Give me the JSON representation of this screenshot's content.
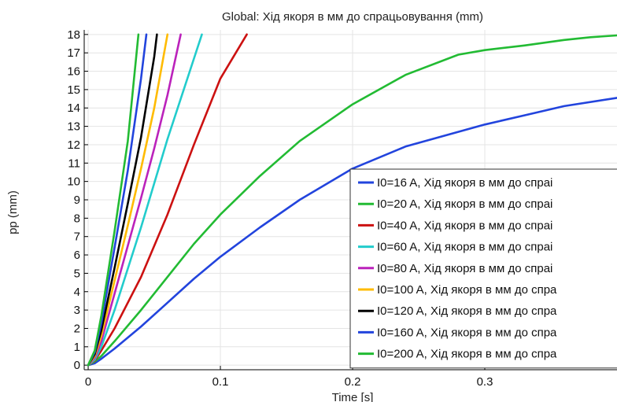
{
  "chart_data": {
    "type": "line",
    "title": "Global: Хід якоря в мм до спрацьовування (mm)",
    "xlabel": "Time [s]",
    "ylabel": "pp (mm)",
    "xlim": [
      -0.003,
      0.4
    ],
    "ylim": [
      -0.25,
      18.25
    ],
    "x_ticks": [
      0,
      0.1,
      0.2,
      0.3
    ],
    "x_tick_labels": [
      "0",
      "0.1",
      "0.2",
      "0.3"
    ],
    "y_ticks": [
      0,
      1,
      2,
      3,
      4,
      5,
      6,
      7,
      8,
      9,
      10,
      11,
      12,
      13,
      14,
      15,
      16,
      17,
      18
    ],
    "y_tick_labels": [
      "0",
      "1",
      "2",
      "3",
      "4",
      "5",
      "6",
      "7",
      "8",
      "9",
      "10",
      "11",
      "12",
      "13",
      "14",
      "15",
      "16",
      "17",
      "18"
    ],
    "grid": true,
    "legend_position": "lower-right",
    "series": [
      {
        "name": "I0=16 A, Хід якоря в мм до спраі",
        "color": "#2244dd",
        "x": [
          0,
          0.005,
          0.01,
          0.02,
          0.04,
          0.06,
          0.08,
          0.1,
          0.13,
          0.16,
          0.2,
          0.24,
          0.27,
          0.3,
          0.33,
          0.36,
          0.4
        ],
        "y": [
          0,
          0.1,
          0.35,
          0.9,
          2.1,
          3.4,
          4.7,
          5.9,
          7.5,
          9.0,
          10.7,
          11.9,
          12.5,
          13.1,
          13.6,
          14.1,
          14.55
        ]
      },
      {
        "name": "I0=20 A, Хід якоря в мм до спраі",
        "color": "#22bb33",
        "x": [
          0,
          0.005,
          0.01,
          0.02,
          0.04,
          0.06,
          0.08,
          0.1,
          0.13,
          0.16,
          0.2,
          0.24,
          0.28,
          0.3,
          0.33,
          0.36,
          0.38,
          0.4
        ],
        "y": [
          0,
          0.2,
          0.5,
          1.3,
          3.0,
          4.8,
          6.6,
          8.2,
          10.3,
          12.2,
          14.2,
          15.8,
          16.9,
          17.15,
          17.4,
          17.7,
          17.85,
          17.95
        ]
      },
      {
        "name": "I0=40 A, Хід якоря в мм до спраі",
        "color": "#cc1111",
        "x": [
          0,
          0.005,
          0.01,
          0.02,
          0.04,
          0.06,
          0.08,
          0.1,
          0.12
        ],
        "y": [
          0,
          0.25,
          0.8,
          2.0,
          4.8,
          8.2,
          12.0,
          15.6,
          18.0
        ]
      },
      {
        "name": "I0=60 A, Хід якоря в мм до спраі",
        "color": "#22cccc",
        "x": [
          0,
          0.005,
          0.01,
          0.02,
          0.04,
          0.06,
          0.086
        ],
        "y": [
          0,
          0.3,
          1.0,
          3.0,
          7.5,
          12.3,
          18.0
        ]
      },
      {
        "name": "I0=80 A, Хід якоря в мм до спраі",
        "color": "#bb22bb",
        "x": [
          0,
          0.005,
          0.01,
          0.02,
          0.03,
          0.04,
          0.05,
          0.06,
          0.07
        ],
        "y": [
          0,
          0.4,
          1.3,
          3.9,
          6.5,
          9.1,
          11.8,
          14.7,
          18.0
        ]
      },
      {
        "name": "I0=100 A, Хід якоря в мм до спра",
        "color": "#ffbb00",
        "x": [
          0,
          0.005,
          0.01,
          0.02,
          0.03,
          0.04,
          0.05,
          0.06
        ],
        "y": [
          0,
          0.5,
          1.6,
          4.6,
          7.6,
          10.7,
          14.0,
          18.0
        ]
      },
      {
        "name": "I0=120 A, Хід якоря в мм до спра",
        "color": "#000000",
        "x": [
          0,
          0.005,
          0.01,
          0.02,
          0.03,
          0.04,
          0.05,
          0.052
        ],
        "y": [
          0,
          0.6,
          1.9,
          5.3,
          8.8,
          12.4,
          16.8,
          18.0
        ]
      },
      {
        "name": "I0=160 A, Хід якоря в мм до спра",
        "color": "#2244dd",
        "x": [
          0,
          0.005,
          0.01,
          0.02,
          0.03,
          0.04,
          0.044
        ],
        "y": [
          0,
          0.7,
          2.3,
          6.4,
          10.6,
          15.6,
          18.0
        ]
      },
      {
        "name": "I0=200 A, Хід якоря в мм до спра",
        "color": "#22bb33",
        "x": [
          0,
          0.005,
          0.01,
          0.02,
          0.03,
          0.038
        ],
        "y": [
          0,
          0.8,
          2.7,
          7.3,
          12.2,
          18.0
        ]
      }
    ]
  }
}
